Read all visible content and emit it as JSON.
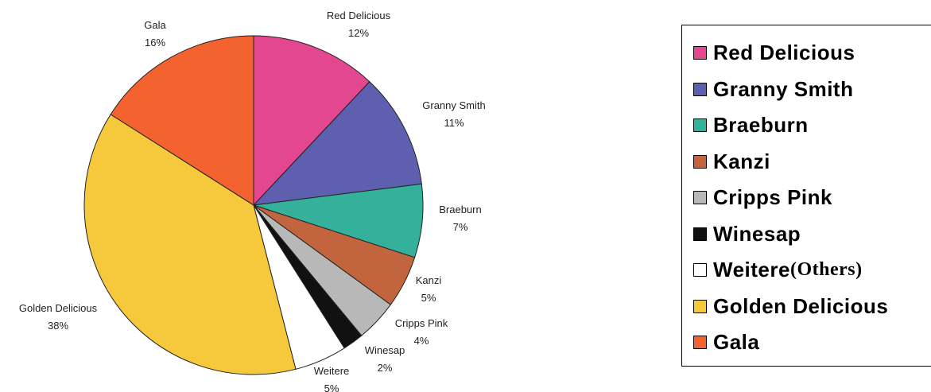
{
  "chart_data": {
    "type": "pie",
    "title": "",
    "slices": [
      {
        "label": "Red Delicious",
        "value": 12,
        "pct_label": "12%",
        "color": "#E2478F"
      },
      {
        "label": "Granny Smith",
        "value": 11,
        "pct_label": "11%",
        "color": "#5E5FAE"
      },
      {
        "label": "Braeburn",
        "value": 7,
        "pct_label": "7%",
        "color": "#35B09B"
      },
      {
        "label": "Kanzi",
        "value": 5,
        "pct_label": "5%",
        "color": "#C2653E"
      },
      {
        "label": "Cripps Pink",
        "value": 4,
        "pct_label": "4%",
        "color": "#B8B8B8"
      },
      {
        "label": "Winesap",
        "value": 2,
        "pct_label": "2%",
        "color": "#111111"
      },
      {
        "label": "Weitere",
        "value": 5,
        "pct_label": "5%",
        "color": "#FFFFFF"
      },
      {
        "label": "Golden Delicious",
        "value": 38,
        "pct_label": "38%",
        "color": "#F5C93B"
      },
      {
        "label": "Gala",
        "value": 16,
        "pct_label": "16%",
        "color": "#F4622F"
      }
    ],
    "legend": {
      "placement": "right",
      "entries": [
        {
          "label": "Red Delicious",
          "color": "#E2478F"
        },
        {
          "label": "Granny Smith",
          "color": "#5E5FAE"
        },
        {
          "label": "Braeburn",
          "color": "#35B09B"
        },
        {
          "label": "Kanzi",
          "color": "#C2653E"
        },
        {
          "label": "Cripps Pink",
          "color": "#B8B8B8"
        },
        {
          "label": "Winesap",
          "color": "#111111"
        },
        {
          "label": "Weitere",
          "suffix": "(Others)",
          "color": "#FFFFFF"
        },
        {
          "label": "Golden Delicious",
          "color": "#F5C93B"
        },
        {
          "label": "Gala",
          "color": "#F4622F"
        }
      ]
    }
  }
}
